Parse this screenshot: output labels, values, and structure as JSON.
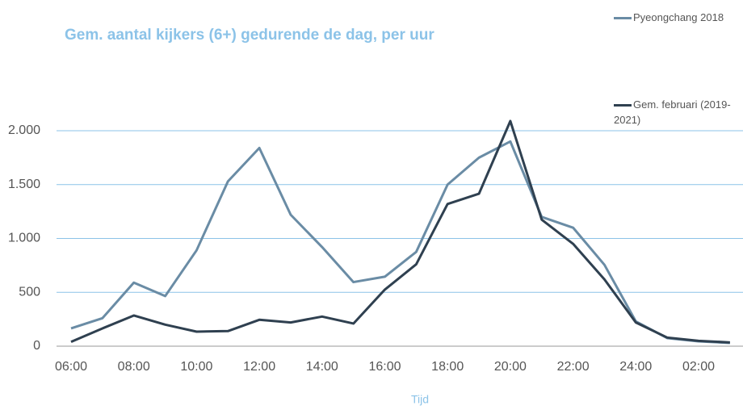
{
  "chart_data": {
    "type": "line",
    "title": "Gem. aantal kijkers (6+) gedurende de dag, per uur",
    "x_label": "Tijd",
    "categories": [
      "06:00",
      null,
      "08:00",
      null,
      "10:00",
      null,
      "12:00",
      null,
      "14:00",
      null,
      "16:00",
      null,
      "18:00",
      null,
      "20:00",
      null,
      "22:00",
      null,
      "24:00",
      null,
      "02:00",
      null
    ],
    "series": [
      {
        "name": "Pyeongchang 2018",
        "color": "#6a8ca5",
        "values": [
          165,
          260,
          590,
          465,
          890,
          1530,
          1840,
          1220,
          920,
          595,
          645,
          875,
          1500,
          1750,
          1900,
          1200,
          1100,
          755,
          230,
          75,
          45,
          30
        ]
      },
      {
        "name": "Gem. februari (2019-2021)",
        "color": "#2f4050",
        "values": [
          40,
          165,
          285,
          200,
          135,
          140,
          245,
          220,
          275,
          210,
          525,
          760,
          1320,
          1415,
          2090,
          1175,
          950,
          620,
          220,
          80,
          50,
          35
        ]
      }
    ],
    "ylim": [
      0,
      2000
    ],
    "yticks": [
      0,
      500,
      {
        "value": 1000,
        "label": "1.000"
      },
      {
        "value": 1500,
        "label": "1.500"
      },
      {
        "value": 2000,
        "label": "2.000"
      }
    ],
    "grid": true
  }
}
